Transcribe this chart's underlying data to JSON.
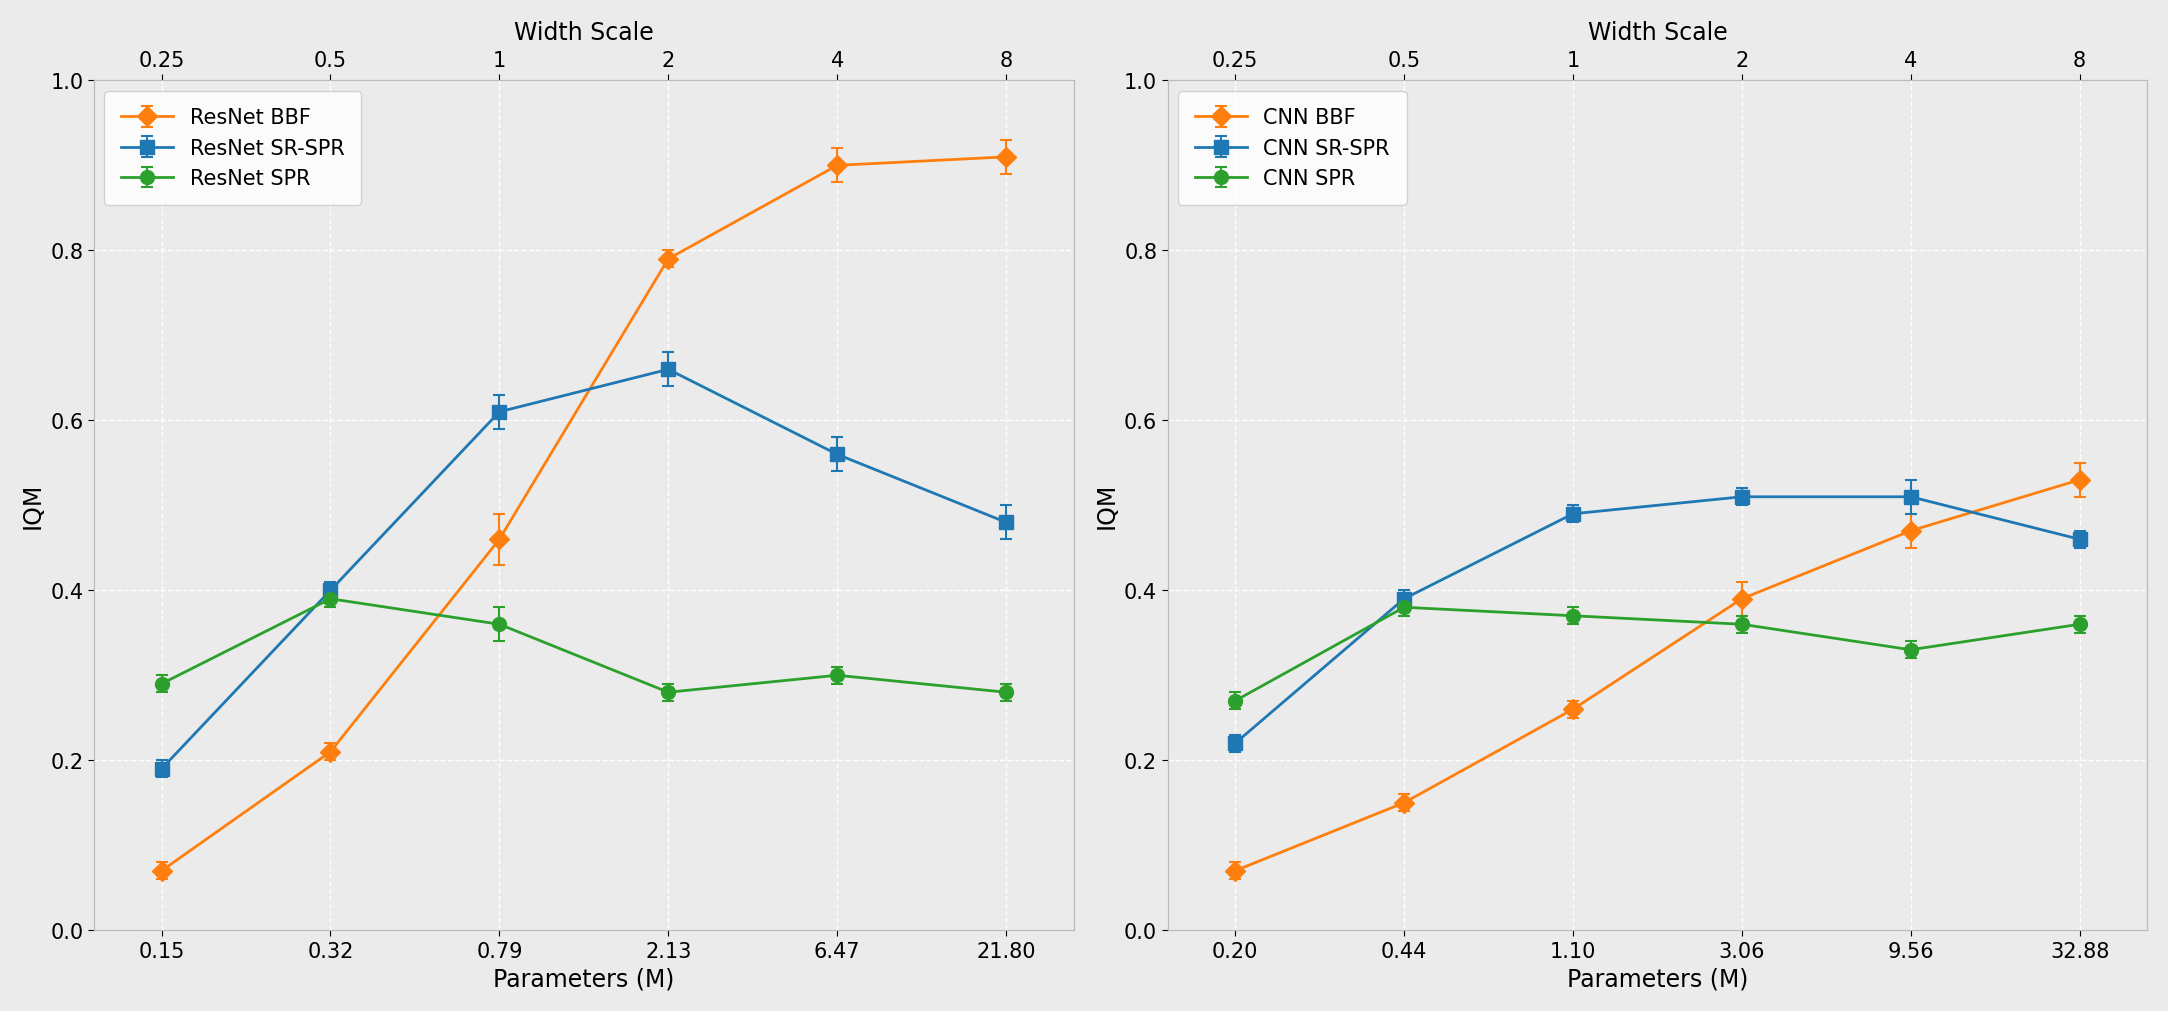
{
  "left": {
    "title": "Width Scale",
    "xlabel": "Parameters (M)",
    "ylabel": "IQM",
    "top_tick_labels": [
      "0.25",
      "0.5",
      "1",
      "2",
      "4",
      "8"
    ],
    "x_labels": [
      "0.15",
      "0.32",
      "0.79",
      "2.13",
      "6.47",
      "21.80"
    ],
    "ylim": [
      0.0,
      1.0
    ],
    "yticks": [
      0.0,
      0.2,
      0.4,
      0.6,
      0.8,
      1.0
    ],
    "series": [
      {
        "label": "ResNet BBF",
        "color": "#ff7f0e",
        "marker": "D",
        "y": [
          0.07,
          0.21,
          0.46,
          0.79,
          0.9,
          0.91
        ],
        "yerr": [
          0.01,
          0.01,
          0.03,
          0.01,
          0.02,
          0.02
        ]
      },
      {
        "label": "ResNet SR-SPR",
        "color": "#1f77b4",
        "marker": "s",
        "y": [
          0.19,
          0.4,
          0.61,
          0.66,
          0.56,
          0.48
        ],
        "yerr": [
          0.01,
          0.01,
          0.02,
          0.02,
          0.02,
          0.02
        ]
      },
      {
        "label": "ResNet SPR",
        "color": "#2ca02c",
        "marker": "o",
        "y": [
          0.29,
          0.39,
          0.36,
          0.28,
          0.3,
          0.28
        ],
        "yerr": [
          0.01,
          0.01,
          0.02,
          0.01,
          0.01,
          0.01
        ]
      }
    ]
  },
  "right": {
    "title": "Width Scale",
    "xlabel": "Parameters (M)",
    "ylabel": "IQM",
    "top_tick_labels": [
      "0.25",
      "0.5",
      "1",
      "2",
      "4",
      "8"
    ],
    "x_labels": [
      "0.20",
      "0.44",
      "1.10",
      "3.06",
      "9.56",
      "32.88"
    ],
    "ylim": [
      0.0,
      1.0
    ],
    "yticks": [
      0.0,
      0.2,
      0.4,
      0.6,
      0.8,
      1.0
    ],
    "series": [
      {
        "label": "CNN BBF",
        "color": "#ff7f0e",
        "marker": "D",
        "y": [
          0.07,
          0.15,
          0.26,
          0.39,
          0.47,
          0.53
        ],
        "yerr": [
          0.01,
          0.01,
          0.01,
          0.02,
          0.02,
          0.02
        ]
      },
      {
        "label": "CNN SR-SPR",
        "color": "#1f77b4",
        "marker": "s",
        "y": [
          0.22,
          0.39,
          0.49,
          0.51,
          0.51,
          0.46
        ],
        "yerr": [
          0.01,
          0.01,
          0.01,
          0.01,
          0.02,
          0.01
        ]
      },
      {
        "label": "CNN SPR",
        "color": "#2ca02c",
        "marker": "o",
        "y": [
          0.27,
          0.38,
          0.37,
          0.36,
          0.33,
          0.36
        ],
        "yerr": [
          0.01,
          0.01,
          0.01,
          0.01,
          0.01,
          0.01
        ]
      }
    ]
  },
  "background_color": "#ebebeb",
  "linewidth": 2.0,
  "markersize": 10,
  "capsize": 4,
  "legend_fontsize": 15,
  "tick_fontsize": 15,
  "label_fontsize": 17,
  "title_fontsize": 17
}
